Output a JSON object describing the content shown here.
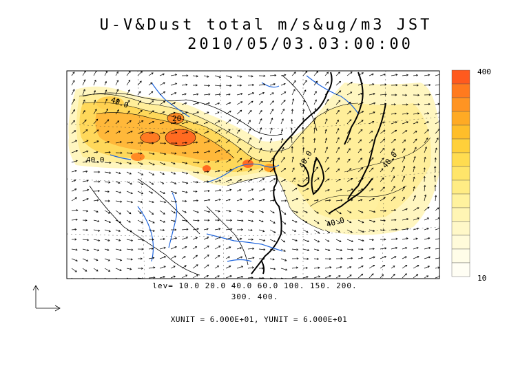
{
  "title": "U-V&Dust total m/s&ug/m3 JST",
  "subtitle": "2010/05/03.03:00:00",
  "levels_line1": "lev= 10.0 20.0 40.0 60.0 100. 150. 200.",
  "levels_line2": "300. 400.",
  "units_text": "XUNIT = 6.000E+01, YUNIT = 6.000E+01",
  "colorbar": {
    "max_label": "400",
    "min_label": "10",
    "colors": [
      "#ff5a1e",
      "#ff7a1e",
      "#ff9422",
      "#ffaa24",
      "#ffbe2a",
      "#ffd03a",
      "#ffdc50",
      "#ffe56a",
      "#ffec84",
      "#fff29e",
      "#fff5b4",
      "#fff8c8",
      "#fffbda",
      "#fffde8",
      "#fffef4"
    ]
  },
  "contour_labels": [
    "40.0",
    "40.0",
    "20",
    "40.0",
    "40.0",
    "40.0"
  ],
  "colors": {
    "coast": "#000000",
    "rivers": "#1e64dc",
    "dust_low": "#fff3b0",
    "dust_high": "#ff5a1e"
  }
}
